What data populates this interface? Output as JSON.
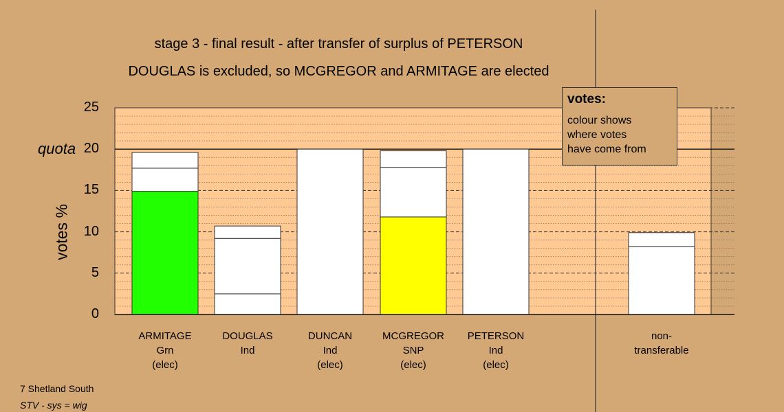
{
  "chart_data": {
    "type": "bar",
    "title": "stage 3 - final result - after transfer of surplus of PETERSON",
    "subtitle": "DOUGLAS is excluded, so MCGREGOR and ARMITAGE are elected",
    "ylabel": "votes %",
    "ylim": [
      0,
      25
    ],
    "yticks": [
      "0",
      "5",
      "10",
      "15",
      "20",
      "25"
    ],
    "quota": {
      "label": "quota",
      "value": 20
    },
    "bars": [
      {
        "name": "ARMITAGE",
        "party": "Grn",
        "status": "(elec)",
        "color": "#22ff00",
        "segments": [
          {
            "value": 14.9,
            "color": "#22ff00"
          },
          {
            "value": 2.8,
            "color": "#ffffff"
          },
          {
            "value": 1.9,
            "color": "#ffffff"
          }
        ]
      },
      {
        "name": "DOUGLAS",
        "party": "Ind",
        "status": "",
        "segments": [
          {
            "value": 2.5,
            "color": "#ffffff"
          },
          {
            "value": 6.7,
            "color": "#ffffff"
          },
          {
            "value": 1.5,
            "color": "#ffffff"
          }
        ]
      },
      {
        "name": "DUNCAN",
        "party": "Ind",
        "status": "(elec)",
        "segments": [
          {
            "value": 20,
            "color": "#ffffff"
          }
        ]
      },
      {
        "name": "MCGREGOR",
        "party": "SNP",
        "status": "(elec)",
        "color": "#ffff00",
        "segments": [
          {
            "value": 11.8,
            "color": "#ffff00"
          },
          {
            "value": 6.0,
            "color": "#ffffff"
          },
          {
            "value": 2.0,
            "color": "#ffffff"
          }
        ]
      },
      {
        "name": "PETERSON",
        "party": "Ind",
        "status": "(elec)",
        "segments": [
          {
            "value": 20,
            "color": "#ffffff"
          }
        ]
      },
      {
        "name": "non-",
        "party": "transferable",
        "status": "",
        "segments": [
          {
            "value": 8.2,
            "color": "#ffffff"
          },
          {
            "value": 1.7,
            "color": "#ffffff"
          }
        ]
      }
    ],
    "grid": true
  },
  "legend": {
    "title": "votes:",
    "body": "colour shows\nwhere votes\nhave come from"
  },
  "footer": {
    "line1": "7 Shetland South",
    "line2": "STV - sys = wig"
  },
  "colors": {
    "background": "#d4a874",
    "plot_background": "#ffc993"
  }
}
